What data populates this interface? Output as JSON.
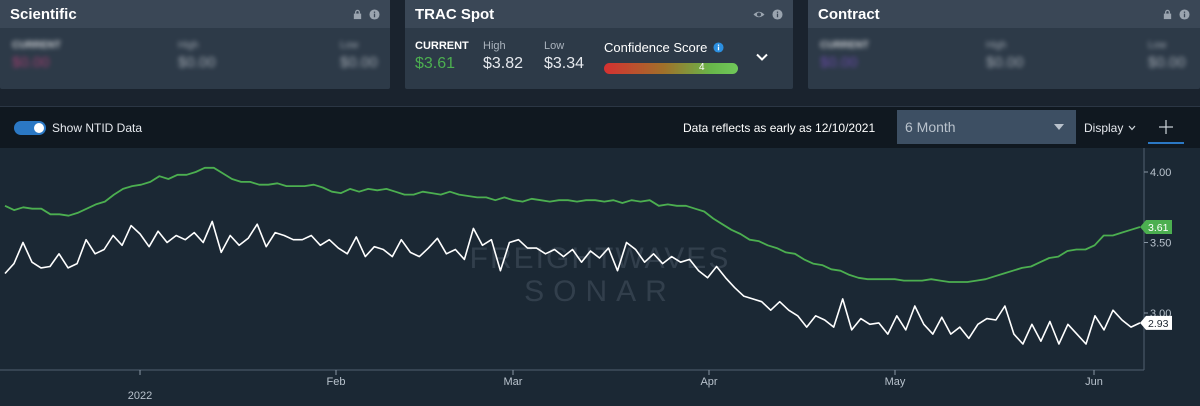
{
  "cards": {
    "scientific": {
      "title": "Scientific",
      "icons": [
        "lock-icon",
        "info-icon"
      ],
      "fields": [
        {
          "label": "CURRENT",
          "value": "$0.00",
          "color": "#c2407a"
        },
        {
          "label": "High",
          "value": "$0.00",
          "color": "#c2c8cf"
        },
        {
          "label": "Low",
          "value": "$0.00",
          "color": "#c2c8cf"
        }
      ]
    },
    "trac": {
      "title": "TRAC Spot",
      "icons": [
        "eye-icon",
        "info-icon"
      ],
      "current_label": "CURRENT",
      "current_value": "$3.61",
      "high_label": "High",
      "high_value": "$3.82",
      "low_label": "Low",
      "low_value": "$3.34",
      "confidence_label": "Confidence Score",
      "confidence_value": "4",
      "expand_icon": "chevron-down-icon"
    },
    "contract": {
      "title": "Contract",
      "icons": [
        "lock-icon",
        "info-icon"
      ],
      "fields": [
        {
          "label": "CURRENT",
          "value": "$0.00",
          "color": "#7b4fc4"
        },
        {
          "label": "High",
          "value": "$0.00",
          "color": "#c2c8cf"
        },
        {
          "label": "Low",
          "value": "$0.00",
          "color": "#c2c8cf"
        }
      ]
    }
  },
  "toolbar": {
    "toggle_label": "Show NTID Data",
    "toggle_on": true,
    "data_note": "Data reflects as early as 12/10/2021",
    "range_select": "6 Month",
    "display_label": "Display",
    "crosshair_icon": "crosshair-icon"
  },
  "watermark": {
    "line1": "FREIGHTWAVES",
    "line2": "SONAR"
  },
  "chart_data": {
    "type": "line",
    "x_ticks": [
      "2022",
      "Feb",
      "Mar",
      "Apr",
      "May",
      "Jun"
    ],
    "y_ticks": [
      "4.00",
      "3.50",
      "3.00"
    ],
    "ylim": [
      2.5,
      4.2
    ],
    "grid": false,
    "series": [
      {
        "color": "#4caf50",
        "last_label": "3.61",
        "values": [
          3.76,
          3.73,
          3.75,
          3.74,
          3.74,
          3.7,
          3.7,
          3.69,
          3.71,
          3.74,
          3.77,
          3.79,
          3.84,
          3.88,
          3.9,
          3.91,
          3.93,
          3.97,
          3.95,
          3.98,
          3.98,
          4.0,
          4.03,
          4.03,
          3.99,
          3.95,
          3.93,
          3.93,
          3.91,
          3.91,
          3.92,
          3.9,
          3.9,
          3.9,
          3.91,
          3.89,
          3.86,
          3.85,
          3.88,
          3.86,
          3.88,
          3.87,
          3.88,
          3.86,
          3.84,
          3.84,
          3.86,
          3.85,
          3.84,
          3.86,
          3.84,
          3.83,
          3.82,
          3.82,
          3.8,
          3.82,
          3.8,
          3.79,
          3.81,
          3.8,
          3.79,
          3.8,
          3.8,
          3.79,
          3.8,
          3.8,
          3.79,
          3.8,
          3.78,
          3.8,
          3.79,
          3.8,
          3.76,
          3.77,
          3.76,
          3.76,
          3.74,
          3.72,
          3.67,
          3.63,
          3.59,
          3.56,
          3.52,
          3.51,
          3.48,
          3.46,
          3.43,
          3.42,
          3.38,
          3.35,
          3.34,
          3.31,
          3.3,
          3.27,
          3.25,
          3.24,
          3.24,
          3.24,
          3.24,
          3.23,
          3.23,
          3.23,
          3.24,
          3.23,
          3.22,
          3.22,
          3.22,
          3.23,
          3.24,
          3.26,
          3.28,
          3.3,
          3.32,
          3.33,
          3.36,
          3.39,
          3.4,
          3.44,
          3.45,
          3.45,
          3.48,
          3.55,
          3.55,
          3.57,
          3.59,
          3.61
        ]
      },
      {
        "color": "#ffffff",
        "last_label": "2.93",
        "values": [
          3.28,
          3.35,
          3.5,
          3.36,
          3.32,
          3.33,
          3.42,
          3.32,
          3.35,
          3.52,
          3.42,
          3.45,
          3.55,
          3.48,
          3.62,
          3.56,
          3.47,
          3.58,
          3.5,
          3.55,
          3.52,
          3.57,
          3.5,
          3.65,
          3.43,
          3.55,
          3.48,
          3.53,
          3.63,
          3.47,
          3.57,
          3.55,
          3.52,
          3.52,
          3.55,
          3.48,
          3.52,
          3.46,
          3.42,
          3.54,
          3.4,
          3.47,
          3.45,
          3.4,
          3.52,
          3.43,
          3.4,
          3.46,
          3.53,
          3.42,
          3.45,
          3.38,
          3.6,
          3.48,
          3.52,
          3.3,
          3.5,
          3.52,
          3.46,
          3.46,
          3.42,
          3.45,
          3.4,
          3.45,
          3.36,
          3.44,
          3.39,
          3.46,
          3.3,
          3.5,
          3.45,
          3.36,
          3.42,
          3.35,
          3.4,
          3.36,
          3.38,
          3.3,
          3.25,
          3.33,
          3.25,
          3.18,
          3.12,
          3.1,
          3.08,
          3.02,
          3.08,
          3.02,
          2.98,
          2.9,
          2.98,
          2.95,
          2.9,
          3.1,
          2.88,
          2.96,
          2.92,
          2.93,
          2.85,
          2.98,
          2.88,
          3.05,
          2.92,
          2.85,
          2.97,
          2.85,
          2.9,
          2.82,
          2.92,
          2.96,
          2.95,
          3.05,
          2.85,
          2.78,
          2.92,
          2.8,
          2.94,
          2.78,
          2.92,
          2.85,
          2.78,
          2.98,
          2.88,
          3.02,
          2.95,
          2.9,
          2.93
        ]
      }
    ]
  }
}
